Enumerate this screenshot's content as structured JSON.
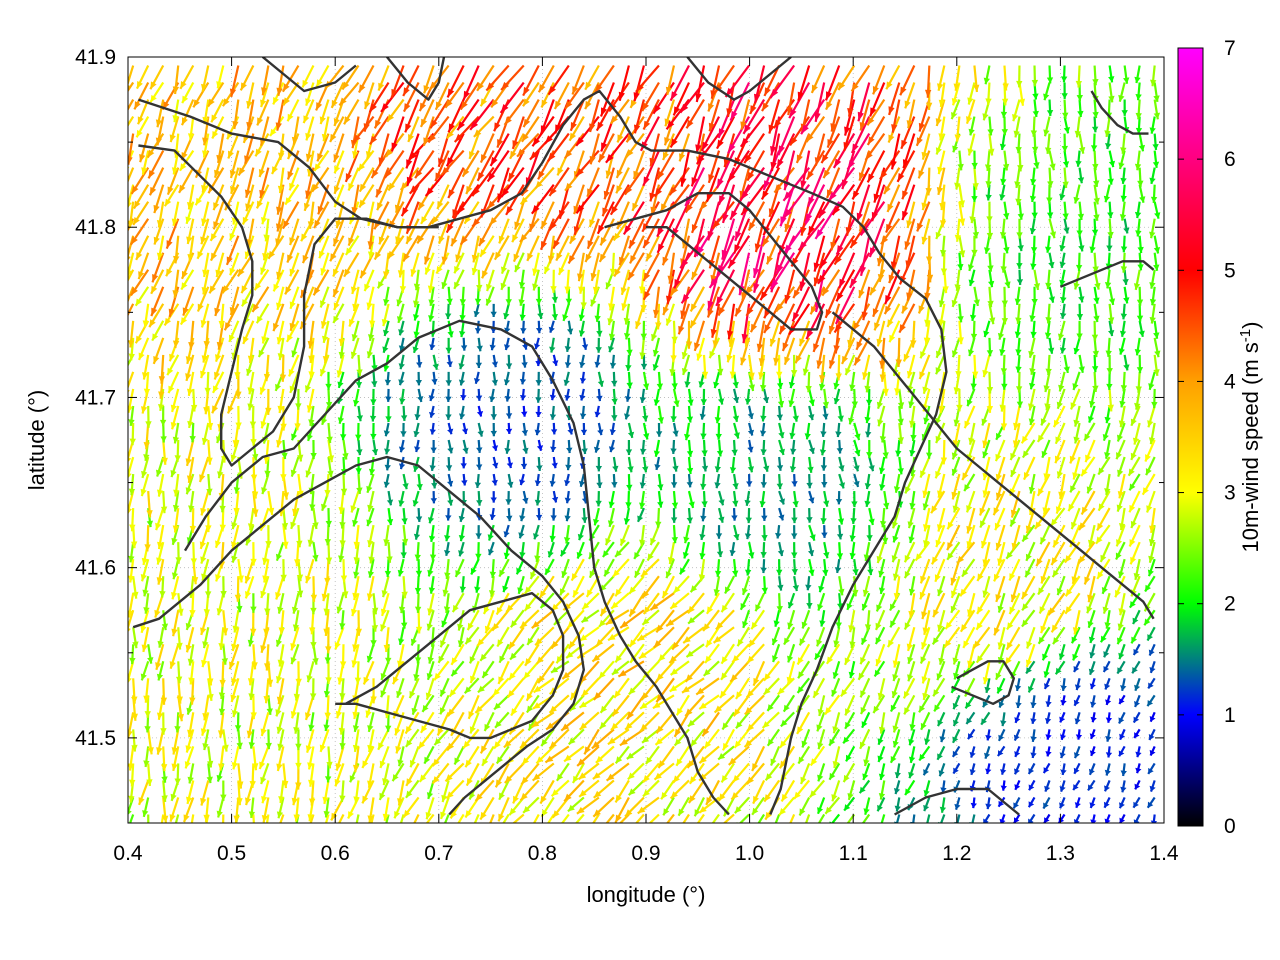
{
  "chart_data": {
    "type": "vector-field",
    "title": "",
    "xlabel": "longitude (°)",
    "ylabel": "latitude (°)",
    "xlim": [
      0.4,
      1.4
    ],
    "ylim": [
      41.45,
      41.9
    ],
    "x_ticks": [
      "0.4",
      "0.5",
      "0.6",
      "0.7",
      "0.8",
      "0.9",
      "1.0",
      "1.1",
      "1.2",
      "1.3",
      "1.4"
    ],
    "y_ticks": [
      "41.5",
      "41.6",
      "41.7",
      "41.8",
      "41.9"
    ],
    "colorbar": {
      "label": "10m-wind speed (m s-1)",
      "label_main": "10m-wind speed (m s",
      "label_sup": "-1",
      "label_end": ")",
      "range": [
        0,
        7
      ],
      "ticks": [
        "0",
        "1",
        "2",
        "3",
        "4",
        "5",
        "6",
        "7"
      ],
      "colormap": [
        "#000000",
        "#0000ff",
        "#00ff00",
        "#ffff00",
        "#ffa000",
        "#ff0000",
        "#ff00ff"
      ]
    },
    "grid": "dotted",
    "vector_style": "arrows colored by speed",
    "contours": [
      {
        "name": "topography",
        "points": [
          [
            0.41,
            41.875
          ],
          [
            0.46,
            41.865
          ],
          [
            0.5,
            41.855
          ],
          [
            0.545,
            41.85
          ],
          [
            0.575,
            41.835
          ],
          [
            0.6,
            41.815
          ],
          [
            0.625,
            41.805
          ],
          [
            0.66,
            41.8
          ],
          [
            0.69,
            41.8
          ],
          [
            0.72,
            41.805
          ],
          [
            0.75,
            41.81
          ],
          [
            0.78,
            41.82
          ],
          [
            0.8,
            41.838
          ],
          [
            0.82,
            41.86
          ],
          [
            0.84,
            41.875
          ],
          [
            0.855,
            41.88
          ],
          [
            0.875,
            41.865
          ],
          [
            0.89,
            41.85
          ],
          [
            0.905,
            41.845
          ],
          [
            0.94,
            41.845
          ],
          [
            0.98,
            41.84
          ],
          [
            1.02,
            41.83
          ],
          [
            1.06,
            41.82
          ],
          [
            1.09,
            41.812
          ],
          [
            1.11,
            41.8
          ],
          [
            1.125,
            41.785
          ],
          [
            1.145,
            41.77
          ],
          [
            1.17,
            41.758
          ],
          [
            1.185,
            41.74
          ],
          [
            1.19,
            41.715
          ],
          [
            1.18,
            41.69
          ],
          [
            1.165,
            41.67
          ],
          [
            1.15,
            41.65
          ],
          [
            1.14,
            41.63
          ],
          [
            1.12,
            41.61
          ],
          [
            1.1,
            41.59
          ],
          [
            1.08,
            41.565
          ],
          [
            1.065,
            41.54
          ],
          [
            1.05,
            41.52
          ],
          [
            1.04,
            41.5
          ],
          [
            1.03,
            41.47
          ],
          [
            1.02,
            41.455
          ]
        ]
      },
      {
        "name": "topography",
        "points": [
          [
            0.41,
            41.848
          ],
          [
            0.445,
            41.845
          ],
          [
            0.47,
            41.83
          ],
          [
            0.49,
            41.818
          ],
          [
            0.51,
            41.8
          ],
          [
            0.52,
            41.78
          ],
          [
            0.52,
            41.76
          ],
          [
            0.51,
            41.74
          ],
          [
            0.5,
            41.715
          ],
          [
            0.49,
            41.69
          ],
          [
            0.49,
            41.67
          ],
          [
            0.5,
            41.66
          ],
          [
            0.52,
            41.67
          ],
          [
            0.54,
            41.68
          ],
          [
            0.56,
            41.7
          ],
          [
            0.57,
            41.73
          ],
          [
            0.57,
            41.76
          ],
          [
            0.58,
            41.79
          ],
          [
            0.6,
            41.805
          ],
          [
            0.63,
            41.805
          ],
          [
            0.66,
            41.8
          ],
          [
            0.7,
            41.8
          ]
        ]
      },
      {
        "name": "topography",
        "points": [
          [
            0.455,
            41.61
          ],
          [
            0.475,
            41.63
          ],
          [
            0.5,
            41.65
          ],
          [
            0.53,
            41.665
          ],
          [
            0.56,
            41.67
          ],
          [
            0.59,
            41.69
          ],
          [
            0.62,
            41.71
          ],
          [
            0.65,
            41.72
          ],
          [
            0.68,
            41.735
          ],
          [
            0.72,
            41.745
          ],
          [
            0.76,
            41.74
          ],
          [
            0.79,
            41.73
          ],
          [
            0.81,
            41.71
          ],
          [
            0.83,
            41.685
          ],
          [
            0.84,
            41.66
          ],
          [
            0.845,
            41.63
          ],
          [
            0.85,
            41.6
          ],
          [
            0.86,
            41.58
          ],
          [
            0.875,
            41.56
          ],
          [
            0.89,
            41.545
          ],
          [
            0.91,
            41.53
          ],
          [
            0.925,
            41.515
          ],
          [
            0.94,
            41.5
          ],
          [
            0.95,
            41.48
          ],
          [
            0.965,
            41.465
          ],
          [
            0.98,
            41.455
          ]
        ]
      },
      {
        "name": "topography",
        "points": [
          [
            0.405,
            41.565
          ],
          [
            0.43,
            41.57
          ],
          [
            0.45,
            41.58
          ],
          [
            0.47,
            41.59
          ],
          [
            0.5,
            41.61
          ],
          [
            0.53,
            41.625
          ],
          [
            0.56,
            41.64
          ],
          [
            0.59,
            41.65
          ],
          [
            0.62,
            41.66
          ],
          [
            0.65,
            41.665
          ],
          [
            0.68,
            41.66
          ],
          [
            0.71,
            41.645
          ],
          [
            0.74,
            41.63
          ],
          [
            0.77,
            41.61
          ],
          [
            0.8,
            41.595
          ],
          [
            0.82,
            41.58
          ],
          [
            0.835,
            41.56
          ],
          [
            0.84,
            41.54
          ],
          [
            0.83,
            41.52
          ],
          [
            0.81,
            41.505
          ],
          [
            0.785,
            41.495
          ],
          [
            0.765,
            41.485
          ],
          [
            0.745,
            41.475
          ],
          [
            0.725,
            41.465
          ],
          [
            0.71,
            41.455
          ]
        ]
      },
      {
        "name": "topography",
        "points": [
          [
            0.61,
            41.52
          ],
          [
            0.64,
            41.53
          ],
          [
            0.67,
            41.545
          ],
          [
            0.7,
            41.56
          ],
          [
            0.73,
            41.575
          ],
          [
            0.76,
            41.58
          ],
          [
            0.79,
            41.585
          ],
          [
            0.81,
            41.575
          ],
          [
            0.82,
            41.56
          ],
          [
            0.82,
            41.54
          ],
          [
            0.81,
            41.525
          ],
          [
            0.79,
            41.51
          ],
          [
            0.77,
            41.505
          ],
          [
            0.75,
            41.5
          ],
          [
            0.73,
            41.5
          ],
          [
            0.71,
            41.505
          ],
          [
            0.68,
            41.51
          ],
          [
            0.65,
            41.515
          ],
          [
            0.62,
            41.52
          ],
          [
            0.6,
            41.52
          ]
        ]
      },
      {
        "name": "topography",
        "points": [
          [
            0.86,
            41.8
          ],
          [
            0.89,
            41.805
          ],
          [
            0.92,
            41.81
          ],
          [
            0.95,
            41.82
          ],
          [
            0.98,
            41.82
          ],
          [
            1.0,
            41.81
          ],
          [
            1.02,
            41.795
          ],
          [
            1.04,
            41.78
          ],
          [
            1.06,
            41.765
          ],
          [
            1.07,
            41.75
          ],
          [
            1.065,
            41.74
          ],
          [
            1.04,
            41.74
          ],
          [
            1.02,
            41.75
          ],
          [
            1.0,
            41.76
          ],
          [
            0.98,
            41.77
          ],
          [
            0.96,
            41.78
          ],
          [
            0.94,
            41.79
          ],
          [
            0.92,
            41.8
          ],
          [
            0.9,
            41.8
          ]
        ]
      },
      {
        "name": "topography",
        "points": [
          [
            1.08,
            41.75
          ],
          [
            1.1,
            41.74
          ],
          [
            1.12,
            41.73
          ],
          [
            1.14,
            41.715
          ],
          [
            1.16,
            41.7
          ],
          [
            1.18,
            41.685
          ],
          [
            1.2,
            41.67
          ],
          [
            1.22,
            41.66
          ],
          [
            1.24,
            41.65
          ],
          [
            1.26,
            41.64
          ],
          [
            1.28,
            41.63
          ],
          [
            1.3,
            41.62
          ],
          [
            1.32,
            41.61
          ],
          [
            1.34,
            41.6
          ],
          [
            1.36,
            41.59
          ],
          [
            1.38,
            41.58
          ],
          [
            1.39,
            41.57
          ]
        ]
      },
      {
        "name": "topography",
        "points": [
          [
            1.3,
            41.765
          ],
          [
            1.32,
            41.77
          ],
          [
            1.34,
            41.775
          ],
          [
            1.36,
            41.78
          ],
          [
            1.38,
            41.78
          ],
          [
            1.39,
            41.775
          ]
        ]
      },
      {
        "name": "topography",
        "points": [
          [
            1.33,
            41.88
          ],
          [
            1.34,
            41.87
          ],
          [
            1.355,
            41.86
          ],
          [
            1.37,
            41.855
          ],
          [
            1.385,
            41.855
          ]
        ]
      },
      {
        "name": "topography",
        "points": [
          [
            1.195,
            41.53
          ],
          [
            1.215,
            41.525
          ],
          [
            1.235,
            41.52
          ],
          [
            1.25,
            41.525
          ],
          [
            1.255,
            41.535
          ],
          [
            1.245,
            41.545
          ],
          [
            1.23,
            41.545
          ],
          [
            1.215,
            41.54
          ],
          [
            1.2,
            41.535
          ]
        ]
      },
      {
        "name": "topography",
        "points": [
          [
            1.14,
            41.455
          ],
          [
            1.17,
            41.465
          ],
          [
            1.2,
            41.47
          ],
          [
            1.23,
            41.47
          ],
          [
            1.25,
            41.46
          ],
          [
            1.26,
            41.455
          ]
        ]
      },
      {
        "name": "topography",
        "points": [
          [
            0.94,
            41.9
          ],
          [
            0.96,
            41.885
          ],
          [
            0.985,
            41.875
          ],
          [
            1.0,
            41.88
          ],
          [
            1.02,
            41.89
          ],
          [
            1.04,
            41.9
          ]
        ]
      },
      {
        "name": "topography",
        "points": [
          [
            0.53,
            41.9
          ],
          [
            0.55,
            41.89
          ],
          [
            0.57,
            41.88
          ],
          [
            0.6,
            41.885
          ],
          [
            0.62,
            41.895
          ]
        ]
      },
      {
        "name": "topography",
        "points": [
          [
            0.65,
            41.9
          ],
          [
            0.67,
            41.885
          ],
          [
            0.69,
            41.875
          ],
          [
            0.7,
            41.885
          ],
          [
            0.705,
            41.9
          ]
        ]
      }
    ],
    "field_regions": [
      {
        "lon": [
          0.4,
          0.6
        ],
        "lat": [
          41.75,
          41.9
        ],
        "speed": 3.6,
        "direction_deg": 200
      },
      {
        "lon": [
          0.62,
          0.9
        ],
        "lat": [
          41.85,
          41.9
        ],
        "speed": 4.4,
        "direction_deg": 210
      },
      {
        "lon": [
          0.9,
          1.2
        ],
        "lat": [
          41.76,
          41.86
        ],
        "speed": 5.2,
        "direction_deg": 205
      },
      {
        "lon": [
          1.2,
          1.4
        ],
        "lat": [
          41.7,
          41.9
        ],
        "speed": 2.1,
        "direction_deg": 180
      },
      {
        "lon": [
          0.6,
          0.95
        ],
        "lat": [
          41.6,
          41.78
        ],
        "speed": 1.3,
        "direction_deg": 180
      },
      {
        "lon": [
          0.95,
          1.1
        ],
        "lat": [
          41.55,
          41.75
        ],
        "speed": 1.6,
        "direction_deg": 175
      },
      {
        "lon": [
          0.4,
          0.6
        ],
        "lat": [
          41.45,
          41.75
        ],
        "speed": 2.9,
        "direction_deg": 185
      },
      {
        "lon": [
          0.8,
          1.0
        ],
        "lat": [
          41.48,
          41.62
        ],
        "speed": 3.3,
        "direction_deg": 225
      },
      {
        "lon": [
          1.1,
          1.4
        ],
        "lat": [
          41.5,
          41.7
        ],
        "speed": 3.1,
        "direction_deg": 205
      },
      {
        "lon": [
          1.25,
          1.4
        ],
        "lat": [
          41.45,
          41.55
        ],
        "speed": 1.1,
        "direction_deg": 200
      }
    ]
  }
}
